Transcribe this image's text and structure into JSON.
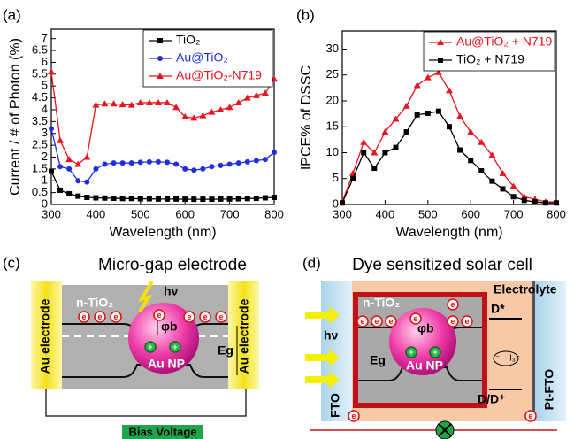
{
  "chart_data": [
    {
      "type": "line",
      "panel_label": "(a)",
      "x_label": "Wavelength (nm)",
      "y_label": "Current / # of Photon (%)",
      "x": [
        300,
        320,
        340,
        360,
        380,
        400,
        420,
        440,
        460,
        480,
        500,
        520,
        540,
        560,
        580,
        600,
        620,
        640,
        660,
        680,
        700,
        720,
        740,
        760,
        780,
        800
      ],
      "series": [
        {
          "name": "TiO₂",
          "color": "#000000",
          "marker": "square",
          "values": [
            1.4,
            0.6,
            0.45,
            0.35,
            0.3,
            0.28,
            0.27,
            0.26,
            0.25,
            0.25,
            0.24,
            0.24,
            0.23,
            0.23,
            0.23,
            0.22,
            0.22,
            0.22,
            0.22,
            0.23,
            0.23,
            0.24,
            0.25,
            0.26,
            0.28,
            0.3
          ]
        },
        {
          "name": "Au@TiO₂",
          "color": "#1f2fe0",
          "marker": "circle",
          "values": [
            3.2,
            1.6,
            1.5,
            1.0,
            0.95,
            1.5,
            1.7,
            1.75,
            1.75,
            1.75,
            1.78,
            1.8,
            1.8,
            1.78,
            1.7,
            1.5,
            1.45,
            1.5,
            1.6,
            1.65,
            1.7,
            1.75,
            1.8,
            1.85,
            1.9,
            2.2
          ]
        },
        {
          "name": "Au@TiO₂-N719",
          "color": "#e8141e",
          "marker": "triangle",
          "values": [
            5.6,
            2.7,
            1.9,
            1.7,
            2.0,
            4.2,
            4.25,
            4.25,
            4.22,
            4.2,
            4.3,
            4.3,
            4.3,
            4.3,
            4.1,
            3.7,
            3.65,
            3.75,
            3.9,
            4.0,
            4.1,
            4.3,
            4.5,
            4.6,
            4.7,
            5.3
          ]
        }
      ],
      "xlim": [
        300,
        800
      ],
      "xticks": [
        300,
        400,
        500,
        600,
        700,
        800
      ],
      "ylim": [
        0,
        7.4
      ],
      "yticks": [
        0,
        0.5,
        1,
        1.5,
        2,
        2.5,
        3,
        3.5,
        4,
        4.5,
        5,
        5.5,
        6,
        6.5,
        7
      ],
      "legend": "upper right"
    },
    {
      "type": "line",
      "panel_label": "(b)",
      "x_label": "Wavelength (nm)",
      "y_label": "IPCE% of DSSC",
      "x": [
        300,
        325,
        350,
        375,
        400,
        425,
        450,
        475,
        500,
        525,
        550,
        575,
        600,
        625,
        650,
        675,
        700,
        725,
        750,
        775,
        800
      ],
      "series": [
        {
          "name": "Au@TiO₂ + N719",
          "color": "#e8141e",
          "marker": "triangle",
          "values": [
            0.5,
            6,
            12,
            10,
            14,
            16.5,
            19,
            23,
            24.5,
            25.5,
            22,
            17,
            14,
            12,
            9.5,
            6,
            3.5,
            1.5,
            1,
            0.5,
            0.5
          ]
        },
        {
          "name": "TiO₂ + N719",
          "color": "#000000",
          "marker": "square",
          "values": [
            0.3,
            5,
            10,
            7,
            10,
            11,
            14,
            17.3,
            17.6,
            18,
            15,
            10.5,
            8.5,
            6.5,
            4.5,
            3,
            1.5,
            0.8,
            0.5,
            0.3,
            0.3
          ]
        }
      ],
      "xlim": [
        300,
        800
      ],
      "xticks": [
        300,
        400,
        500,
        600,
        700,
        800
      ],
      "ylim": [
        0,
        33.5
      ],
      "yticks": [
        0,
        5,
        10,
        15,
        20,
        25,
        30
      ],
      "legend": "upper right"
    }
  ],
  "diagram_c": {
    "panel_label": "(c)",
    "title": "Micro-gap electrode",
    "left_electrode": "Au electrode",
    "right_electrode": "Au electrode",
    "semiconductor": "n-TiO₂",
    "light": "hν",
    "barrier": "φb",
    "band_gap": "Eg",
    "particle": "Au NP",
    "bias": "Bias Voltage",
    "electron": "e",
    "hole": "+"
  },
  "diagram_d": {
    "panel_label": "(d)",
    "title": "Dye sensitized solar cell",
    "electrolyte": "Electrolyte",
    "semiconductor": "n-TiO₂",
    "dye_excited": "D*",
    "dye_ground": "D/D⁺",
    "light": "hν",
    "band_gap": "Eg",
    "barrier": "φb",
    "particle": "Au NP",
    "anode": "FTO",
    "cathode": "Pt-FTO",
    "iodide": "I⁻",
    "triiodide": "I₃⁻",
    "electron": "e",
    "hole": "+"
  }
}
